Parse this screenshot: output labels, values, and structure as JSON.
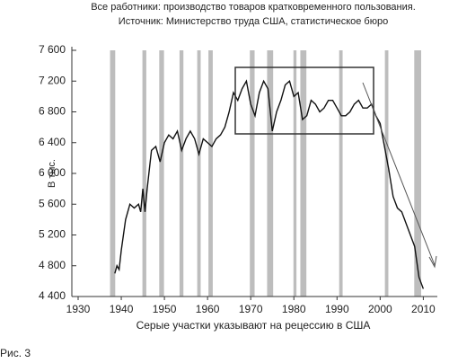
{
  "chart_data": {
    "type": "line",
    "title": "Все работники: производство товаров кратковременного пользования.",
    "subtitle": "Источник: Министерство труда США, статистическое бюро",
    "y_label": "В тыс.",
    "x_label": "Серые участки указывают на рецессию в США",
    "x": [
      1938.5,
      1939,
      1939.5,
      1940,
      1941,
      1942,
      1943,
      1944,
      1944.5,
      1945,
      1945.5,
      1946,
      1947,
      1948,
      1949,
      1950,
      1951,
      1952,
      1953,
      1954,
      1955,
      1956,
      1957,
      1958,
      1959,
      1960,
      1961,
      1962,
      1963,
      1964,
      1965,
      1966,
      1967,
      1968,
      1969,
      1970,
      1971,
      1972,
      1973,
      1974,
      1975,
      1976,
      1977,
      1978,
      1979,
      1980,
      1981,
      1982,
      1983,
      1984,
      1985,
      1986,
      1987,
      1988,
      1989,
      1990,
      1991,
      1992,
      1993,
      1994,
      1995,
      1996,
      1997,
      1998,
      1999,
      2000,
      2001,
      2002,
      2003,
      2004,
      2005,
      2006,
      2007,
      2008,
      2009,
      2010
    ],
    "series": [
      {
        "color": "#111111",
        "values": [
          4700,
          4800,
          4750,
          5000,
          5400,
          5600,
          5550,
          5600,
          5500,
          5800,
          5500,
          5800,
          6300,
          6350,
          6150,
          6400,
          6500,
          6450,
          6550,
          6300,
          6450,
          6550,
          6450,
          6250,
          6450,
          6400,
          6350,
          6450,
          6500,
          6600,
          6800,
          7050,
          6950,
          7100,
          7200,
          6900,
          6750,
          7050,
          7200,
          7100,
          6550,
          6800,
          6950,
          7150,
          7200,
          7000,
          7050,
          6700,
          6750,
          6950,
          6900,
          6800,
          6850,
          6950,
          6950,
          6850,
          6750,
          6750,
          6800,
          6900,
          6950,
          6850,
          6850,
          6900,
          6750,
          6650,
          6350,
          6050,
          5700,
          5550,
          5500,
          5350,
          5200,
          5050,
          4650,
          4500
        ]
      }
    ],
    "recessions": [
      [
        1937.4,
        1938.6
      ],
      [
        1944.9,
        1945.8
      ],
      [
        1948.8,
        1949.9
      ],
      [
        1953.5,
        1954.4
      ],
      [
        1957.6,
        1958.4
      ],
      [
        1960.2,
        1961.2
      ],
      [
        1969.8,
        1970.9
      ],
      [
        1973.8,
        1975.2
      ],
      [
        1979.9,
        1980.6
      ],
      [
        1981.5,
        1982.9
      ],
      [
        1990.5,
        1991.3
      ],
      [
        2001.1,
        2001.9
      ],
      [
        2007.9,
        2009.5
      ]
    ],
    "recession_color": "#bdbdbd",
    "xlim": [
      1930,
      2012
    ],
    "ylim": [
      4400,
      7600
    ],
    "xticks": [
      1930,
      1940,
      1950,
      1960,
      1970,
      1980,
      1990,
      2000,
      2010
    ],
    "yticks": [
      {
        "value": 4400,
        "label": "4 400"
      },
      {
        "value": 4800,
        "label": "4 800"
      },
      {
        "value": 5200,
        "label": "5 200"
      },
      {
        "value": 5600,
        "label": "5 600"
      },
      {
        "value": 6000,
        "label": "6 000"
      },
      {
        "value": 6400,
        "label": "6 400"
      },
      {
        "value": 6800,
        "label": "6 800"
      },
      {
        "value": 7200,
        "label": "7 200"
      },
      {
        "value": 7600,
        "label": "7 600"
      }
    ]
  },
  "figure_label": "Рис. 3"
}
